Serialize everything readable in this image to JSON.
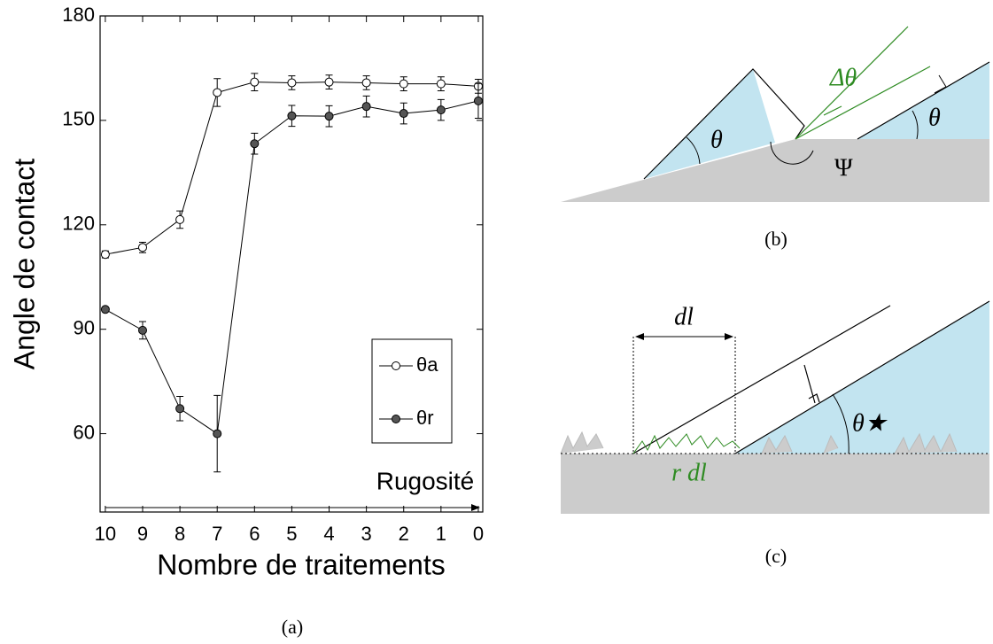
{
  "chart_data": {
    "type": "line",
    "panel_label": "(a)",
    "xlabel": "Nombre de traitements",
    "ylabel": "Angle de contact",
    "annotation": "Rugosité",
    "x": [
      10,
      9,
      8,
      7,
      6,
      5,
      4,
      3,
      2,
      1,
      0
    ],
    "xlim": [
      10.14,
      -0.12
    ],
    "xticks": [
      10,
      9,
      8,
      7,
      6,
      5,
      4,
      3,
      2,
      1,
      0
    ],
    "ylim": [
      37.5,
      180
    ],
    "yticks": [
      60,
      90,
      120,
      150,
      180
    ],
    "series": [
      {
        "name": "θa",
        "color": "#ffffff",
        "values": [
          111.5,
          113.5,
          121.5,
          158,
          161,
          160.8,
          161,
          160.8,
          160.5,
          160.5,
          159.8
        ],
        "errors": [
          1,
          1.5,
          2.5,
          4,
          2.5,
          2,
          2,
          2,
          2,
          2,
          2
        ]
      },
      {
        "name": "θr",
        "color": "#555555",
        "values": [
          95.7,
          89.7,
          67.2,
          60,
          143.3,
          151.3,
          151.2,
          154,
          152,
          153,
          155.6
        ],
        "errors": [
          0.5,
          2.5,
          3.5,
          11,
          3,
          3,
          3,
          3,
          3,
          3,
          5
        ]
      }
    ]
  },
  "diagrams": {
    "b": {
      "label": "(b)",
      "delta_theta": "Δθ",
      "theta_left": "θ",
      "theta_right": "θ",
      "psi": "Ψ"
    },
    "c": {
      "label": "(c)",
      "dl": "dl",
      "rdl": "r dl",
      "theta_star": "θ★"
    }
  }
}
